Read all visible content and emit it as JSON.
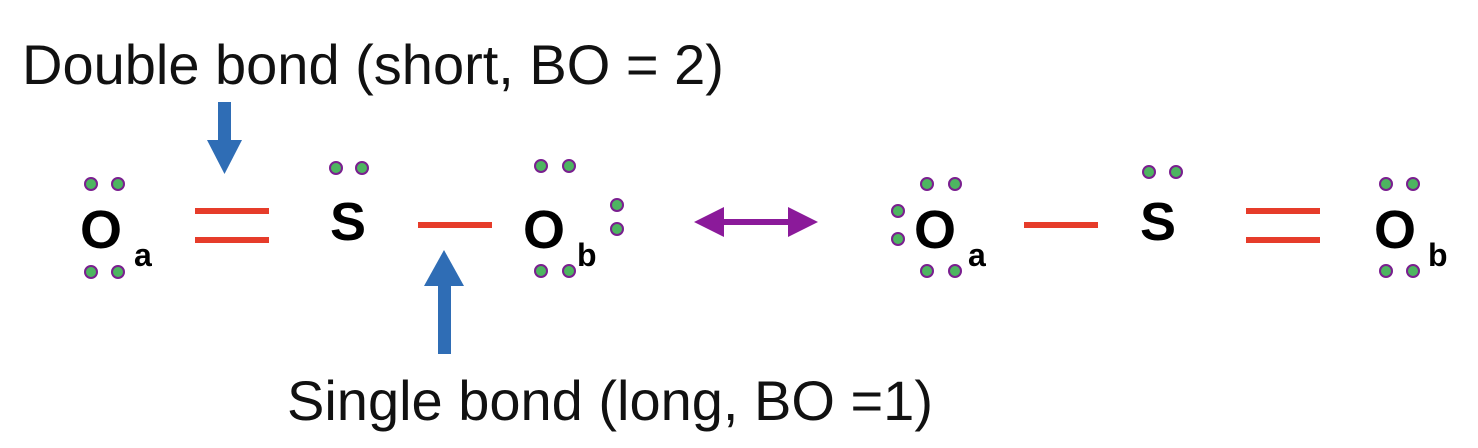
{
  "labels": {
    "double_bond": "Double bond (short, BO = 2)",
    "single_bond": "Single bond (long, BO =1)"
  },
  "structure_left": {
    "atom_oa": "O",
    "atom_oa_sub": "a",
    "atom_s": "S",
    "atom_ob": "O",
    "atom_ob_sub": "b"
  },
  "structure_right": {
    "atom_oa": "O",
    "atom_oa_sub": "a",
    "atom_s": "S",
    "atom_ob": "O",
    "atom_ob_sub": "b"
  },
  "colors": {
    "bond": "#e63c2a",
    "arrow": "#2f6db5",
    "resonance_arrow": "#8b1a9a",
    "electron_fill": "#4db560",
    "electron_stroke": "#7a1f8f"
  },
  "icons": {
    "resonance": "double-headed-arrow-icon",
    "pointer": "down-arrow-icon"
  }
}
